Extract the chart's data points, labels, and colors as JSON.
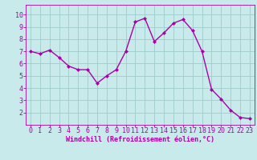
{
  "x": [
    0,
    1,
    2,
    3,
    4,
    5,
    6,
    7,
    8,
    9,
    10,
    11,
    12,
    13,
    14,
    15,
    16,
    17,
    18,
    19,
    20,
    21,
    22,
    23
  ],
  "y": [
    7.0,
    6.8,
    7.1,
    6.5,
    5.8,
    5.5,
    5.5,
    4.4,
    5.0,
    5.5,
    7.0,
    9.4,
    9.7,
    7.8,
    8.5,
    9.3,
    9.6,
    8.7,
    7.0,
    3.9,
    3.1,
    2.2,
    1.6,
    1.5
  ],
  "line_color": "#aa00aa",
  "marker": "D",
  "marker_size": 2.0,
  "bg_color": "#c8eaea",
  "grid_color": "#a0cccc",
  "xlabel": "Windchill (Refroidissement éolien,°C)",
  "xlim": [
    -0.5,
    23.5
  ],
  "ylim": [
    1.0,
    10.8
  ],
  "yticks": [
    2,
    3,
    4,
    5,
    6,
    7,
    8,
    9,
    10
  ],
  "xticks": [
    0,
    1,
    2,
    3,
    4,
    5,
    6,
    7,
    8,
    9,
    10,
    11,
    12,
    13,
    14,
    15,
    16,
    17,
    18,
    19,
    20,
    21,
    22,
    23
  ],
  "tick_color": "#aa00aa",
  "label_color": "#aa00aa",
  "spine_color": "#aa00aa",
  "xlabel_fontsize": 6.0,
  "tick_fontsize": 6.0,
  "linewidth": 1.0
}
